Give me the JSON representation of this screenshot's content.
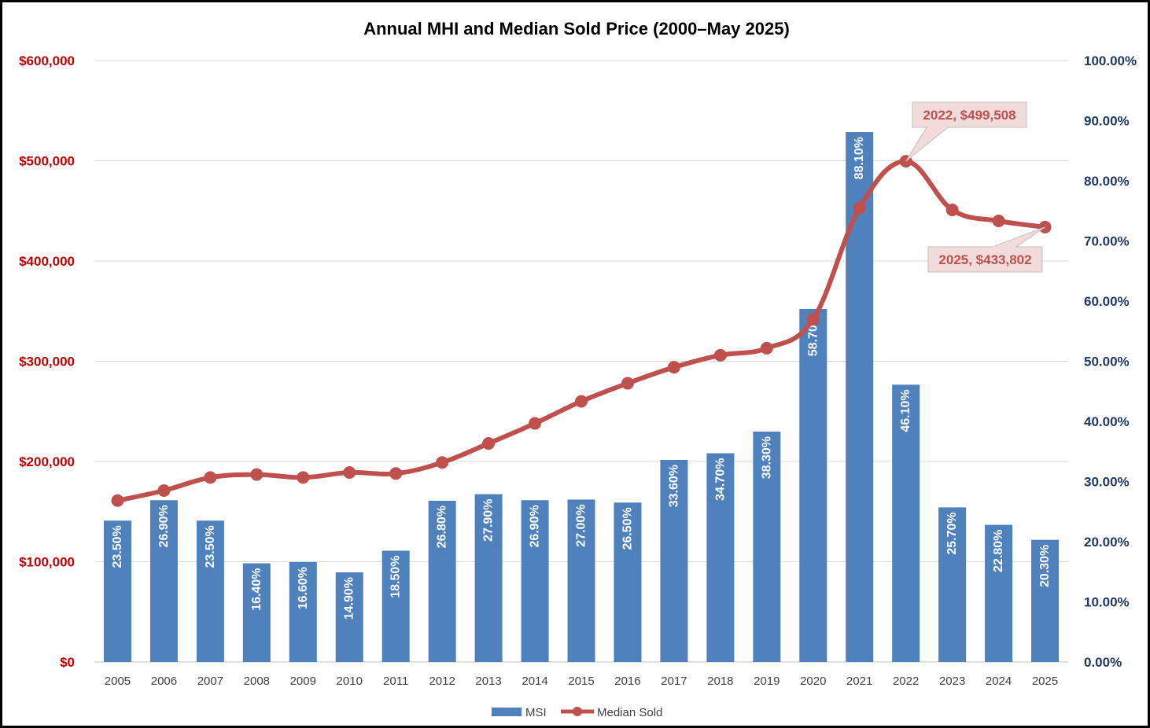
{
  "chart_data": {
    "type": "bar",
    "title": "Annual MHI and Median Sold Price (2000–May 2025)",
    "categories": [
      "2005",
      "2006",
      "2007",
      "2008",
      "2009",
      "2010",
      "2011",
      "2012",
      "2013",
      "2014",
      "2015",
      "2016",
      "2017",
      "2018",
      "2019",
      "2020",
      "2021",
      "2022",
      "2023",
      "2024",
      "2025"
    ],
    "series": [
      {
        "name": "MSI",
        "type": "bar",
        "axis": "right",
        "color": "#4f81bd",
        "values": [
          23.5,
          26.9,
          23.5,
          16.4,
          16.6,
          14.9,
          18.5,
          26.8,
          27.9,
          26.9,
          27.0,
          26.5,
          33.6,
          34.7,
          38.3,
          58.7,
          88.1,
          46.1,
          25.7,
          22.8,
          20.3
        ],
        "labels": [
          "23.50%",
          "26.90%",
          "23.50%",
          "16.40%",
          "16.60%",
          "14.90%",
          "18.50%",
          "26.80%",
          "27.90%",
          "26.90%",
          "27.00%",
          "26.50%",
          "33.60%",
          "34.70%",
          "38.30%",
          "58.70%",
          "88.10%",
          "46.10%",
          "25.70%",
          "22.80%",
          "20.30%"
        ]
      },
      {
        "name": "Median Sold",
        "type": "line",
        "axis": "left",
        "color": "#c0504d",
        "values": [
          161000,
          171000,
          184000,
          187000,
          184000,
          189000,
          188000,
          199000,
          218000,
          238000,
          260000,
          278000,
          294000,
          306000,
          313000,
          342000,
          453000,
          499508,
          451000,
          440000,
          433802
        ]
      }
    ],
    "left_axis": {
      "ylim": [
        0,
        600000
      ],
      "ticks": [
        "$0",
        "$100,000",
        "$200,000",
        "$300,000",
        "$400,000",
        "$500,000",
        "$600,000"
      ],
      "color": "#c00000"
    },
    "right_axis": {
      "ylim": [
        0,
        100
      ],
      "ticks": [
        "0.00%",
        "10.00%",
        "20.00%",
        "30.00%",
        "40.00%",
        "50.00%",
        "60.00%",
        "70.00%",
        "80.00%",
        "90.00%",
        "100.00%"
      ],
      "color": "#1f3864"
    },
    "annotations": [
      {
        "text": "2022, $499,508",
        "category": "2022"
      },
      {
        "text": "2025, $433,802",
        "category": "2025"
      }
    ],
    "grid": true,
    "legend": "bottom",
    "callout_fill": "#f2dcdb",
    "callout_text_color": "#c0504d"
  }
}
